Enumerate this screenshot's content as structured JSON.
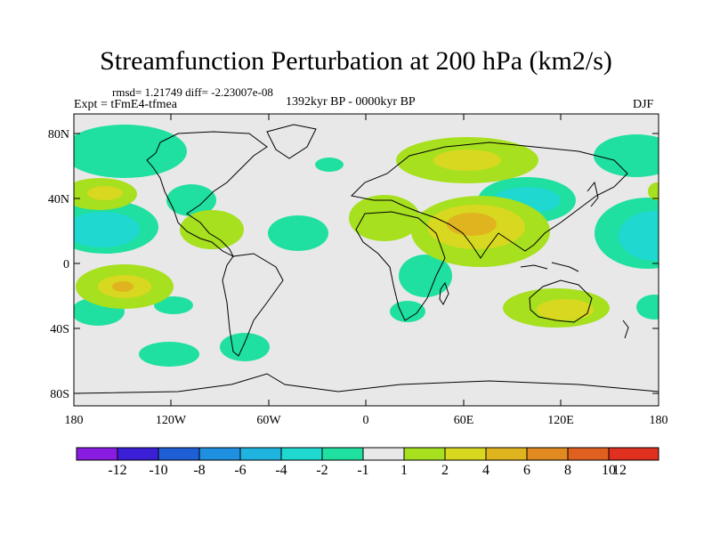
{
  "title": "Streamfunction Perturbation at 200 hPa (km2/s)",
  "stats": "rmsd= 1.21749 diff= -2.23007e-08",
  "experiment": "Expt = tFmE4-tfmea",
  "period": "1392kyr BP - 0000kyr BP",
  "season": "DJF",
  "colors": {
    "ocean_bg": "#e8e8e8",
    "coast": "#000000",
    "levels": [
      "#8a1be0",
      "#3a1fd6",
      "#1f5fd6",
      "#1f8fe0",
      "#1fb4e0",
      "#1fd8d0",
      "#1fe0a0",
      "#e8e8e8",
      "#a6e01f",
      "#d8d820",
      "#e0b41f",
      "#e08a1f",
      "#e0601f",
      "#e0301f"
    ]
  },
  "map": {
    "lon_range": [
      -180,
      180
    ],
    "lat_range": [
      -90,
      90
    ],
    "lat_ticks": [
      "80N",
      "40N",
      "0",
      "40S",
      "80S"
    ],
    "lon_ticks": [
      "180",
      "120W",
      "60W",
      "0",
      "60E",
      "120E",
      "180"
    ],
    "anomalies": [
      {
        "region": "North Atlantic / Arctic",
        "sign": "negative",
        "level": "-1"
      },
      {
        "region": "Central Asia",
        "sign": "positive",
        "level": "2"
      },
      {
        "region": "Middle East / India",
        "sign": "positive",
        "level": "4"
      },
      {
        "region": "North Pacific",
        "sign": "negative",
        "level": "-2"
      },
      {
        "region": "South Pacific",
        "sign": "positive",
        "level": "4"
      },
      {
        "region": "Australia",
        "sign": "positive",
        "level": "4"
      },
      {
        "region": "Caribbean",
        "sign": "positive",
        "level": "2"
      },
      {
        "region": "South Atlantic",
        "sign": "negative",
        "level": "-1"
      }
    ]
  },
  "colorbar": {
    "labels": [
      "-12",
      "-10",
      "-8",
      "-6",
      "-4",
      "-2",
      "-1",
      "1",
      "2",
      "4",
      "6",
      "8",
      "10",
      "12"
    ]
  }
}
